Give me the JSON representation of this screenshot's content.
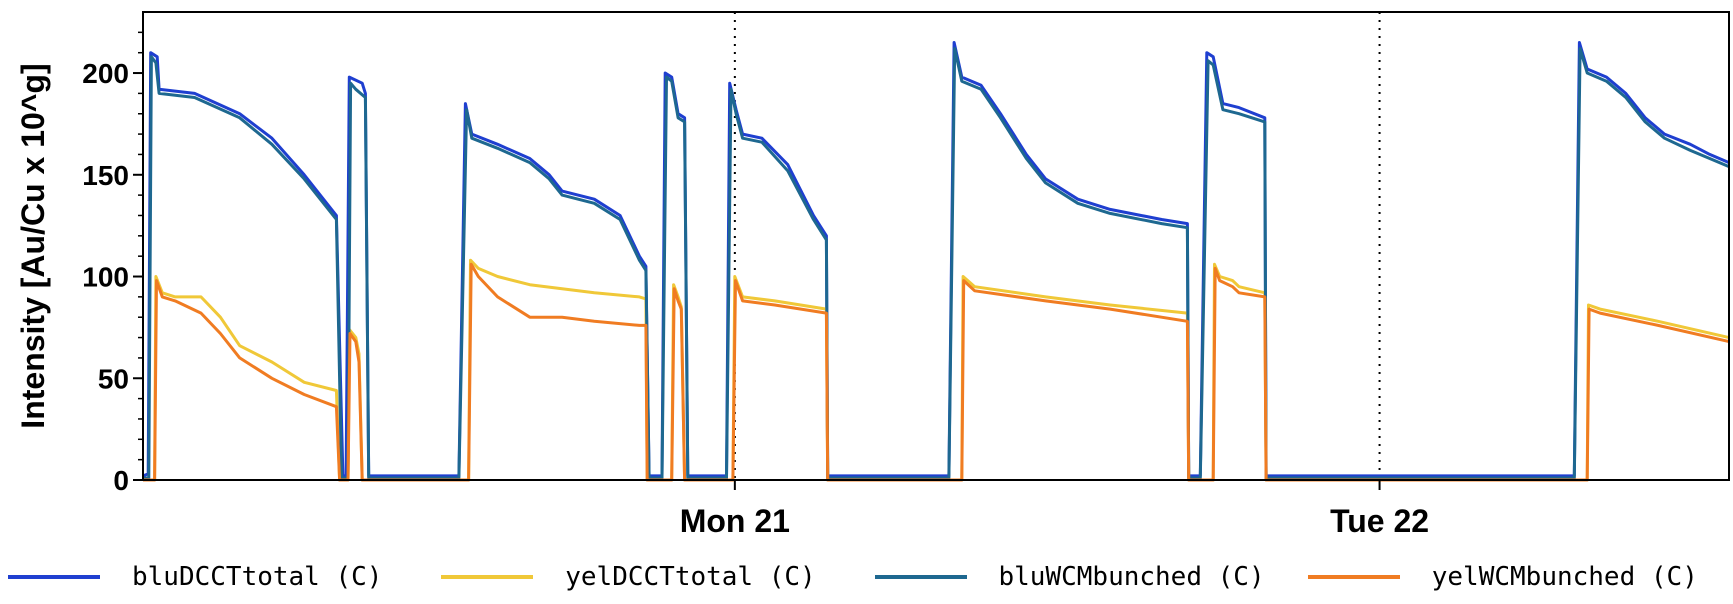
{
  "chart_data": {
    "type": "line",
    "ylabel": "Intensity [Au/Cu x 10^g]",
    "ylim": [
      0,
      230
    ],
    "yticks": [
      0,
      50,
      100,
      150,
      200
    ],
    "xlim": [
      0,
      2.46
    ],
    "day_markers": [
      {
        "label": "Mon 21",
        "x": 0.918
      },
      {
        "label": "Tue 22",
        "x": 1.918
      }
    ],
    "series": [
      {
        "name": "bluDCCTtotal (C)",
        "color": "#1f3fd0",
        "points": [
          [
            0,
            2
          ],
          [
            0.008,
            3
          ],
          [
            0.012,
            210
          ],
          [
            0.022,
            208
          ],
          [
            0.025,
            192
          ],
          [
            0.08,
            190
          ],
          [
            0.15,
            180
          ],
          [
            0.2,
            168
          ],
          [
            0.25,
            150
          ],
          [
            0.3,
            130
          ],
          [
            0.31,
            2
          ],
          [
            0.315,
            2
          ],
          [
            0.32,
            198
          ],
          [
            0.34,
            195
          ],
          [
            0.345,
            190
          ],
          [
            0.35,
            2
          ],
          [
            0.49,
            2
          ],
          [
            0.5,
            185
          ],
          [
            0.51,
            170
          ],
          [
            0.55,
            165
          ],
          [
            0.6,
            158
          ],
          [
            0.63,
            150
          ],
          [
            0.65,
            142
          ],
          [
            0.7,
            138
          ],
          [
            0.74,
            130
          ],
          [
            0.77,
            110
          ],
          [
            0.78,
            105
          ],
          [
            0.785,
            2
          ],
          [
            0.805,
            2
          ],
          [
            0.81,
            200
          ],
          [
            0.82,
            198
          ],
          [
            0.83,
            180
          ],
          [
            0.84,
            178
          ],
          [
            0.845,
            2
          ],
          [
            0.905,
            2
          ],
          [
            0.91,
            195
          ],
          [
            0.92,
            182
          ],
          [
            0.93,
            170
          ],
          [
            0.96,
            168
          ],
          [
            1,
            155
          ],
          [
            1.04,
            130
          ],
          [
            1.06,
            120
          ],
          [
            1.062,
            2
          ],
          [
            1.25,
            2
          ],
          [
            1.258,
            215
          ],
          [
            1.27,
            198
          ],
          [
            1.3,
            194
          ],
          [
            1.33,
            180
          ],
          [
            1.37,
            160
          ],
          [
            1.4,
            148
          ],
          [
            1.45,
            138
          ],
          [
            1.5,
            133
          ],
          [
            1.58,
            128
          ],
          [
            1.62,
            126
          ],
          [
            1.622,
            2
          ],
          [
            1.64,
            2
          ],
          [
            1.65,
            210
          ],
          [
            1.66,
            208
          ],
          [
            1.675,
            185
          ],
          [
            1.7,
            183
          ],
          [
            1.74,
            178
          ],
          [
            1.742,
            2
          ],
          [
            2.2,
            2
          ],
          [
            2.22,
            2
          ],
          [
            2.228,
            215
          ],
          [
            2.24,
            202
          ],
          [
            2.27,
            198
          ],
          [
            2.3,
            190
          ],
          [
            2.33,
            178
          ],
          [
            2.36,
            170
          ],
          [
            2.4,
            165
          ],
          [
            2.43,
            160
          ],
          [
            2.46,
            156
          ]
        ]
      },
      {
        "name": "yelDCCTtotal (C)",
        "color": "#f0c838",
        "points": [
          [
            0,
            0
          ],
          [
            0.018,
            0
          ],
          [
            0.02,
            100
          ],
          [
            0.03,
            92
          ],
          [
            0.05,
            90
          ],
          [
            0.09,
            90
          ],
          [
            0.12,
            80
          ],
          [
            0.15,
            66
          ],
          [
            0.2,
            58
          ],
          [
            0.25,
            48
          ],
          [
            0.3,
            44
          ],
          [
            0.305,
            0
          ],
          [
            0.318,
            0
          ],
          [
            0.32,
            74
          ],
          [
            0.33,
            70
          ],
          [
            0.335,
            62
          ],
          [
            0.34,
            0
          ],
          [
            0.505,
            0
          ],
          [
            0.508,
            108
          ],
          [
            0.52,
            104
          ],
          [
            0.55,
            100
          ],
          [
            0.6,
            96
          ],
          [
            0.65,
            94
          ],
          [
            0.7,
            92
          ],
          [
            0.77,
            90
          ],
          [
            0.78,
            89
          ],
          [
            0.782,
            0
          ],
          [
            0.82,
            0
          ],
          [
            0.823,
            96
          ],
          [
            0.83,
            90
          ],
          [
            0.835,
            85
          ],
          [
            0.84,
            0
          ],
          [
            0.915,
            0
          ],
          [
            0.918,
            100
          ],
          [
            0.93,
            90
          ],
          [
            0.98,
            88
          ],
          [
            1.06,
            84
          ],
          [
            1.062,
            0
          ],
          [
            1.27,
            0
          ],
          [
            1.272,
            100
          ],
          [
            1.29,
            95
          ],
          [
            1.4,
            90
          ],
          [
            1.5,
            86
          ],
          [
            1.62,
            82
          ],
          [
            1.622,
            0
          ],
          [
            1.66,
            0
          ],
          [
            1.662,
            106
          ],
          [
            1.67,
            100
          ],
          [
            1.69,
            98
          ],
          [
            1.7,
            95
          ],
          [
            1.74,
            92
          ],
          [
            1.742,
            0
          ],
          [
            2.24,
            0
          ],
          [
            2.242,
            86
          ],
          [
            2.26,
            84
          ],
          [
            2.35,
            78
          ],
          [
            2.46,
            70
          ]
        ]
      },
      {
        "name": "bluWCMbunched (C)",
        "color": "#1e6890",
        "points": [
          [
            0,
            1
          ],
          [
            0.009,
            1
          ],
          [
            0.013,
            208
          ],
          [
            0.02,
            205
          ],
          [
            0.025,
            190
          ],
          [
            0.08,
            188
          ],
          [
            0.15,
            178
          ],
          [
            0.2,
            165
          ],
          [
            0.25,
            148
          ],
          [
            0.3,
            128
          ],
          [
            0.308,
            1
          ],
          [
            0.318,
            1
          ],
          [
            0.322,
            195
          ],
          [
            0.33,
            192
          ],
          [
            0.345,
            188
          ],
          [
            0.35,
            1
          ],
          [
            0.49,
            1
          ],
          [
            0.502,
            182
          ],
          [
            0.51,
            168
          ],
          [
            0.55,
            163
          ],
          [
            0.6,
            156
          ],
          [
            0.63,
            148
          ],
          [
            0.65,
            140
          ],
          [
            0.7,
            136
          ],
          [
            0.74,
            128
          ],
          [
            0.77,
            108
          ],
          [
            0.78,
            103
          ],
          [
            0.785,
            1
          ],
          [
            0.805,
            1
          ],
          [
            0.812,
            198
          ],
          [
            0.82,
            196
          ],
          [
            0.83,
            178
          ],
          [
            0.84,
            176
          ],
          [
            0.845,
            1
          ],
          [
            0.905,
            1
          ],
          [
            0.912,
            192
          ],
          [
            0.92,
            180
          ],
          [
            0.93,
            168
          ],
          [
            0.96,
            166
          ],
          [
            1,
            152
          ],
          [
            1.04,
            128
          ],
          [
            1.06,
            118
          ],
          [
            1.062,
            1
          ],
          [
            1.25,
            1
          ],
          [
            1.259,
            212
          ],
          [
            1.27,
            196
          ],
          [
            1.3,
            192
          ],
          [
            1.33,
            178
          ],
          [
            1.37,
            158
          ],
          [
            1.4,
            146
          ],
          [
            1.45,
            136
          ],
          [
            1.5,
            131
          ],
          [
            1.58,
            126
          ],
          [
            1.62,
            124
          ],
          [
            1.622,
            1
          ],
          [
            1.64,
            1
          ],
          [
            1.652,
            206
          ],
          [
            1.66,
            204
          ],
          [
            1.675,
            182
          ],
          [
            1.7,
            180
          ],
          [
            1.74,
            176
          ],
          [
            1.742,
            1
          ],
          [
            2.2,
            1
          ],
          [
            2.22,
            1
          ],
          [
            2.229,
            212
          ],
          [
            2.24,
            200
          ],
          [
            2.27,
            196
          ],
          [
            2.3,
            188
          ],
          [
            2.33,
            176
          ],
          [
            2.36,
            168
          ],
          [
            2.4,
            162
          ],
          [
            2.43,
            158
          ],
          [
            2.46,
            154
          ]
        ]
      },
      {
        "name": "yelWCMbunched (C)",
        "color": "#f07c22",
        "points": [
          [
            0,
            0
          ],
          [
            0.018,
            0
          ],
          [
            0.021,
            98
          ],
          [
            0.03,
            90
          ],
          [
            0.05,
            88
          ],
          [
            0.09,
            82
          ],
          [
            0.12,
            72
          ],
          [
            0.15,
            60
          ],
          [
            0.2,
            50
          ],
          [
            0.25,
            42
          ],
          [
            0.3,
            36
          ],
          [
            0.305,
            0
          ],
          [
            0.318,
            0
          ],
          [
            0.321,
            72
          ],
          [
            0.33,
            68
          ],
          [
            0.335,
            58
          ],
          [
            0.34,
            0
          ],
          [
            0.505,
            0
          ],
          [
            0.509,
            106
          ],
          [
            0.52,
            100
          ],
          [
            0.55,
            90
          ],
          [
            0.6,
            80
          ],
          [
            0.65,
            80
          ],
          [
            0.7,
            78
          ],
          [
            0.77,
            76
          ],
          [
            0.78,
            76
          ],
          [
            0.782,
            0
          ],
          [
            0.82,
            0
          ],
          [
            0.824,
            94
          ],
          [
            0.83,
            88
          ],
          [
            0.835,
            84
          ],
          [
            0.84,
            0
          ],
          [
            0.915,
            0
          ],
          [
            0.919,
            98
          ],
          [
            0.93,
            88
          ],
          [
            0.98,
            86
          ],
          [
            1.06,
            82
          ],
          [
            1.062,
            0
          ],
          [
            1.27,
            0
          ],
          [
            1.273,
            98
          ],
          [
            1.29,
            93
          ],
          [
            1.4,
            88
          ],
          [
            1.5,
            84
          ],
          [
            1.62,
            78
          ],
          [
            1.622,
            0
          ],
          [
            1.66,
            0
          ],
          [
            1.663,
            104
          ],
          [
            1.67,
            98
          ],
          [
            1.69,
            95
          ],
          [
            1.7,
            92
          ],
          [
            1.74,
            90
          ],
          [
            1.742,
            0
          ],
          [
            2.24,
            0
          ],
          [
            2.243,
            84
          ],
          [
            2.26,
            82
          ],
          [
            2.35,
            76
          ],
          [
            2.46,
            68
          ]
        ]
      }
    ]
  }
}
